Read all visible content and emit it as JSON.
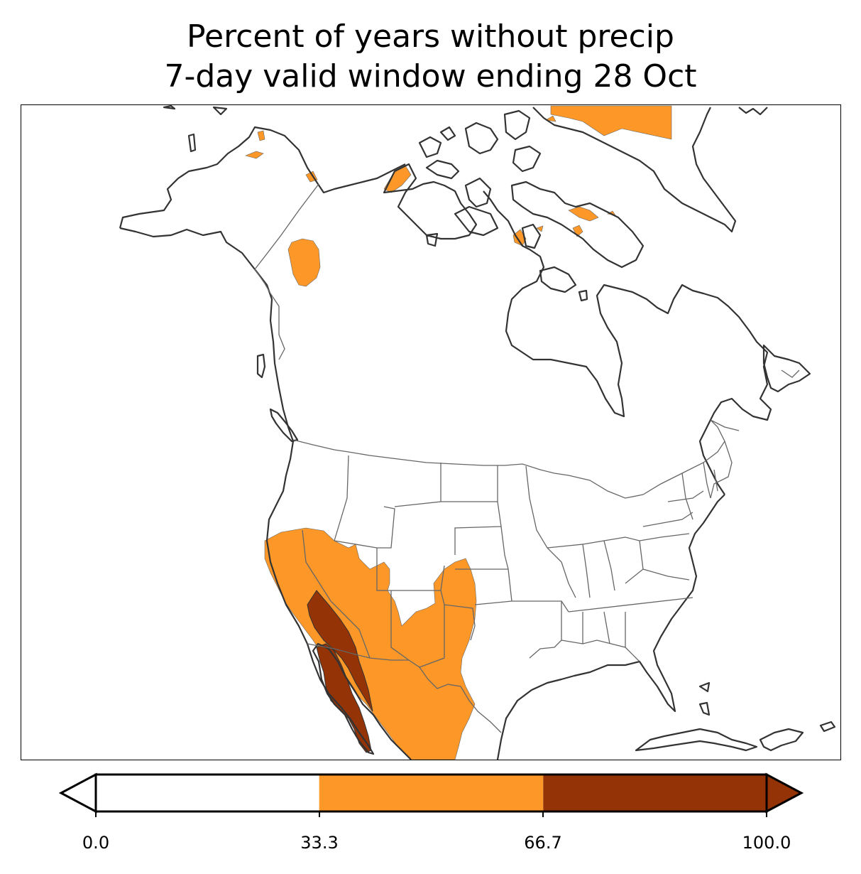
{
  "title": {
    "line1": "Percent of years without precip",
    "line2": "7-day valid window ending 28 Oct"
  },
  "colorbar": {
    "ticks": [
      "0.0",
      "33.3",
      "66.7",
      "100.0"
    ],
    "bins": [
      {
        "from": 0.0,
        "to": 33.3,
        "color": "#ffffff"
      },
      {
        "from": 33.3,
        "to": 66.7,
        "color": "#fd9828"
      },
      {
        "from": 66.7,
        "to": 100.0,
        "color": "#933306"
      }
    ],
    "extend": "both"
  },
  "colors": {
    "mid_bin": "#fd9828",
    "high_bin": "#933306",
    "coastline": "#333333",
    "borders": "#666666"
  }
}
